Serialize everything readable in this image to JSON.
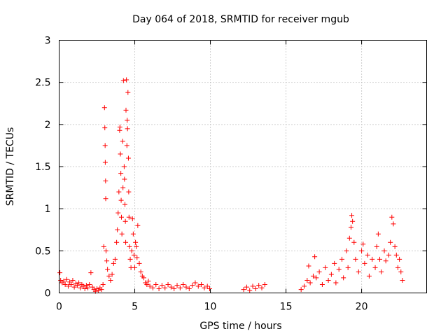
{
  "chart_data": {
    "type": "scatter",
    "title": "Day 064 of 2018, SRMTID for receiver mgub",
    "xlabel": "GPS time / hours",
    "ylabel": "SRMTID / TECUs",
    "xlim": [
      0,
      24.3
    ],
    "ylim": [
      0,
      3
    ],
    "xticks": [
      0,
      5,
      10,
      15,
      20
    ],
    "xtick_labels": [
      "0",
      "5",
      "10",
      "15",
      "20"
    ],
    "yticks": [
      0,
      0.5,
      1,
      1.5,
      2,
      2.5,
      3
    ],
    "ytick_labels": [
      "0",
      "0.5",
      "1",
      "1.5",
      "2",
      "2.5",
      "3"
    ],
    "grid": true,
    "marker": "+",
    "series": [
      {
        "name": "SRMTID",
        "color": "#ff0000",
        "points": [
          [
            0.05,
            0.24
          ],
          [
            0.1,
            0.15
          ],
          [
            0.2,
            0.12
          ],
          [
            0.3,
            0.14
          ],
          [
            0.4,
            0.1
          ],
          [
            0.5,
            0.16
          ],
          [
            0.6,
            0.08
          ],
          [
            0.7,
            0.13
          ],
          [
            0.8,
            0.1
          ],
          [
            0.9,
            0.15
          ],
          [
            1.0,
            0.07
          ],
          [
            1.1,
            0.11
          ],
          [
            1.2,
            0.09
          ],
          [
            1.3,
            0.12
          ],
          [
            1.4,
            0.06
          ],
          [
            1.5,
            0.1
          ],
          [
            1.6,
            0.08
          ],
          [
            1.7,
            0.05
          ],
          [
            1.8,
            0.09
          ],
          [
            1.9,
            0.06
          ],
          [
            2.0,
            0.1
          ],
          [
            2.1,
            0.24
          ],
          [
            2.2,
            0.07
          ],
          [
            2.3,
            0.04
          ],
          [
            2.4,
            0.02
          ],
          [
            2.5,
            0.05
          ],
          [
            2.6,
            0.03
          ],
          [
            2.7,
            0.06
          ],
          [
            2.8,
            0.04
          ],
          [
            2.9,
            0.1
          ],
          [
            2.95,
            0.55
          ],
          [
            3.0,
            2.2
          ],
          [
            3.02,
            1.96
          ],
          [
            3.04,
            1.75
          ],
          [
            3.05,
            1.55
          ],
          [
            3.07,
            1.33
          ],
          [
            3.08,
            1.12
          ],
          [
            3.1,
            0.5
          ],
          [
            3.15,
            0.38
          ],
          [
            3.2,
            0.28
          ],
          [
            3.3,
            0.2
          ],
          [
            3.4,
            0.15
          ],
          [
            3.5,
            0.22
          ],
          [
            3.6,
            0.35
          ],
          [
            3.7,
            0.4
          ],
          [
            3.8,
            0.6
          ],
          [
            3.85,
            0.75
          ],
          [
            3.9,
            0.95
          ],
          [
            3.95,
            1.2
          ],
          [
            4.0,
            1.93
          ],
          [
            4.02,
            1.97
          ],
          [
            4.05,
            1.65
          ],
          [
            4.08,
            1.42
          ],
          [
            4.1,
            1.1
          ],
          [
            4.12,
            0.9
          ],
          [
            4.15,
            0.7
          ],
          [
            4.2,
            1.8
          ],
          [
            4.22,
            1.25
          ],
          [
            4.25,
            2.52
          ],
          [
            4.3,
            1.5
          ],
          [
            4.32,
            1.35
          ],
          [
            4.35,
            1.05
          ],
          [
            4.38,
            0.85
          ],
          [
            4.4,
            0.6
          ],
          [
            4.42,
            2.17
          ],
          [
            4.45,
            2.53
          ],
          [
            4.48,
            1.75
          ],
          [
            4.5,
            2.05
          ],
          [
            4.52,
            1.95
          ],
          [
            4.55,
            2.38
          ],
          [
            4.58,
            1.6
          ],
          [
            4.6,
            1.2
          ],
          [
            4.62,
            0.9
          ],
          [
            4.65,
            0.55
          ],
          [
            4.7,
            0.4
          ],
          [
            4.75,
            0.3
          ],
          [
            4.8,
            0.5
          ],
          [
            4.85,
            0.88
          ],
          [
            4.9,
            0.7
          ],
          [
            4.95,
            0.45
          ],
          [
            5.0,
            0.3
          ],
          [
            5.05,
            0.6
          ],
          [
            5.1,
            0.55
          ],
          [
            5.15,
            0.42
          ],
          [
            5.2,
            0.8
          ],
          [
            5.3,
            0.35
          ],
          [
            5.4,
            0.25
          ],
          [
            5.5,
            0.2
          ],
          [
            5.6,
            0.18
          ],
          [
            5.7,
            0.12
          ],
          [
            5.8,
            0.1
          ],
          [
            5.9,
            0.14
          ],
          [
            6.0,
            0.08
          ],
          [
            6.2,
            0.06
          ],
          [
            6.4,
            0.1
          ],
          [
            6.6,
            0.05
          ],
          [
            6.8,
            0.09
          ],
          [
            7.0,
            0.06
          ],
          [
            7.2,
            0.1
          ],
          [
            7.4,
            0.07
          ],
          [
            7.6,
            0.05
          ],
          [
            7.8,
            0.09
          ],
          [
            8.0,
            0.06
          ],
          [
            8.2,
            0.1
          ],
          [
            8.4,
            0.07
          ],
          [
            8.6,
            0.05
          ],
          [
            8.8,
            0.09
          ],
          [
            9.0,
            0.12
          ],
          [
            9.2,
            0.08
          ],
          [
            9.4,
            0.1
          ],
          [
            9.6,
            0.06
          ],
          [
            9.8,
            0.08
          ],
          [
            9.95,
            0.05
          ],
          [
            12.2,
            0.04
          ],
          [
            12.4,
            0.07
          ],
          [
            12.6,
            0.03
          ],
          [
            12.8,
            0.08
          ],
          [
            13.0,
            0.05
          ],
          [
            13.2,
            0.09
          ],
          [
            13.4,
            0.06
          ],
          [
            13.6,
            0.1
          ],
          [
            16.0,
            0.04
          ],
          [
            16.2,
            0.08
          ],
          [
            16.4,
            0.15
          ],
          [
            16.5,
            0.32
          ],
          [
            16.6,
            0.12
          ],
          [
            16.8,
            0.2
          ],
          [
            16.9,
            0.43
          ],
          [
            17.0,
            0.18
          ],
          [
            17.2,
            0.25
          ],
          [
            17.4,
            0.1
          ],
          [
            17.6,
            0.3
          ],
          [
            17.8,
            0.15
          ],
          [
            18.0,
            0.22
          ],
          [
            18.2,
            0.35
          ],
          [
            18.3,
            0.12
          ],
          [
            18.5,
            0.28
          ],
          [
            18.7,
            0.4
          ],
          [
            18.8,
            0.18
          ],
          [
            19.0,
            0.5
          ],
          [
            19.1,
            0.3
          ],
          [
            19.2,
            0.65
          ],
          [
            19.3,
            0.78
          ],
          [
            19.35,
            0.92
          ],
          [
            19.4,
            0.85
          ],
          [
            19.5,
            0.6
          ],
          [
            19.6,
            0.4
          ],
          [
            19.8,
            0.25
          ],
          [
            20.0,
            0.5
          ],
          [
            20.1,
            0.58
          ],
          [
            20.2,
            0.35
          ],
          [
            20.4,
            0.45
          ],
          [
            20.5,
            0.2
          ],
          [
            20.7,
            0.4
          ],
          [
            20.9,
            0.3
          ],
          [
            21.0,
            0.55
          ],
          [
            21.1,
            0.7
          ],
          [
            21.2,
            0.4
          ],
          [
            21.3,
            0.25
          ],
          [
            21.5,
            0.5
          ],
          [
            21.6,
            0.38
          ],
          [
            21.8,
            0.45
          ],
          [
            21.9,
            0.6
          ],
          [
            22.0,
            0.9
          ],
          [
            22.1,
            0.82
          ],
          [
            22.2,
            0.55
          ],
          [
            22.3,
            0.45
          ],
          [
            22.4,
            0.3
          ],
          [
            22.5,
            0.4
          ],
          [
            22.6,
            0.25
          ],
          [
            22.7,
            0.15
          ]
        ]
      }
    ]
  }
}
